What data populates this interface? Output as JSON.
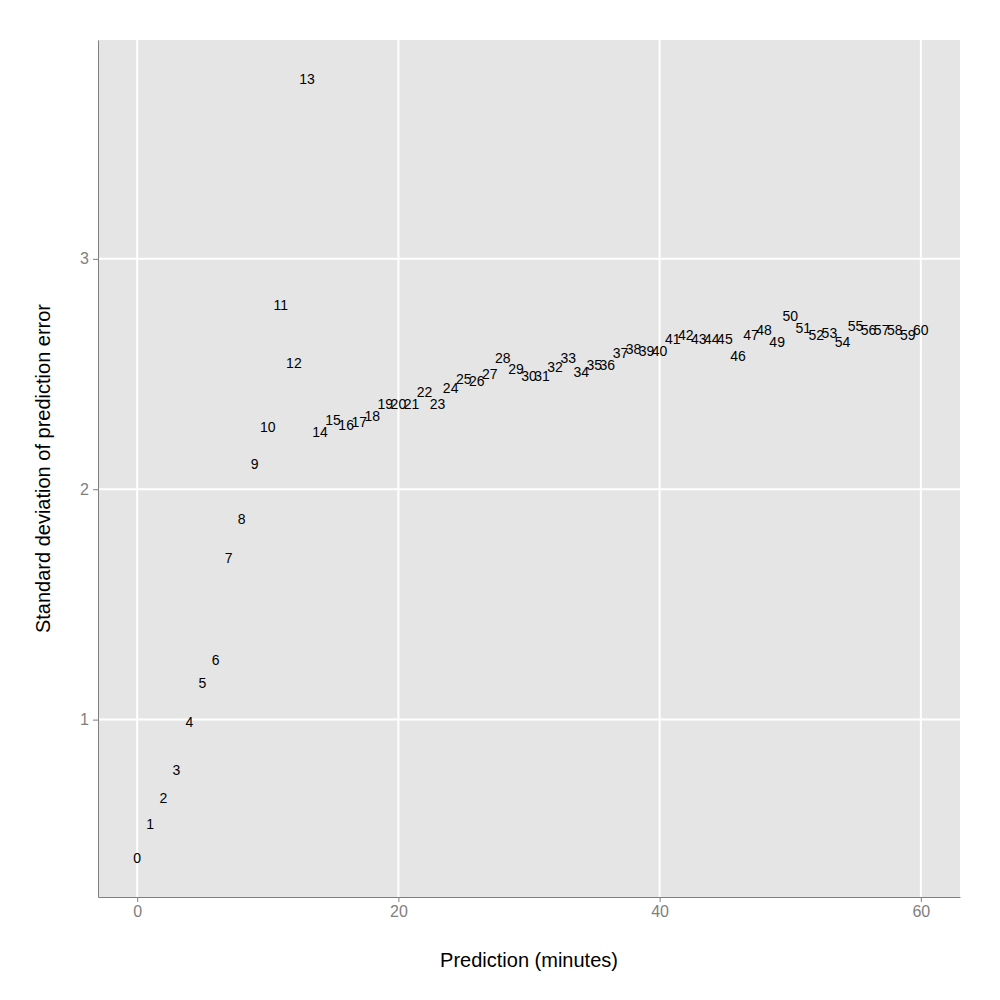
{
  "chart_data": {
    "type": "scatter",
    "marker": "text",
    "x_label": "Prediction (minutes)",
    "y_label": "Standard deviation of prediction error",
    "x": [
      0,
      1,
      2,
      3,
      4,
      5,
      6,
      7,
      8,
      9,
      10,
      11,
      12,
      13,
      14,
      15,
      16,
      17,
      18,
      19,
      20,
      21,
      22,
      23,
      24,
      25,
      26,
      27,
      28,
      29,
      30,
      31,
      32,
      33,
      34,
      35,
      36,
      37,
      38,
      39,
      40,
      41,
      42,
      43,
      44,
      45,
      46,
      47,
      48,
      49,
      50,
      51,
      52,
      53,
      54,
      55,
      56,
      57,
      58,
      59,
      60
    ],
    "values": [
      0.4,
      0.545,
      0.66,
      0.78,
      0.99,
      1.16,
      1.26,
      1.7,
      1.87,
      2.11,
      2.27,
      2.8,
      2.55,
      3.78,
      2.25,
      2.3,
      2.28,
      2.29,
      2.32,
      2.37,
      2.37,
      2.37,
      2.42,
      2.37,
      2.44,
      2.48,
      2.47,
      2.5,
      2.57,
      2.52,
      2.49,
      2.49,
      2.53,
      2.57,
      2.51,
      2.54,
      2.54,
      2.59,
      2.61,
      2.6,
      2.6,
      2.65,
      2.67,
      2.65,
      2.65,
      2.65,
      2.58,
      2.67,
      2.69,
      2.64,
      2.75,
      2.7,
      2.67,
      2.68,
      2.64,
      2.71,
      2.69,
      2.69,
      2.69,
      2.67,
      2.69
    ],
    "xlim": [
      -3,
      63
    ],
    "ylim": [
      0.23,
      3.95
    ],
    "xticks": [
      0,
      20,
      40,
      60
    ],
    "yticks": [
      1,
      2,
      3
    ],
    "grid": true
  }
}
